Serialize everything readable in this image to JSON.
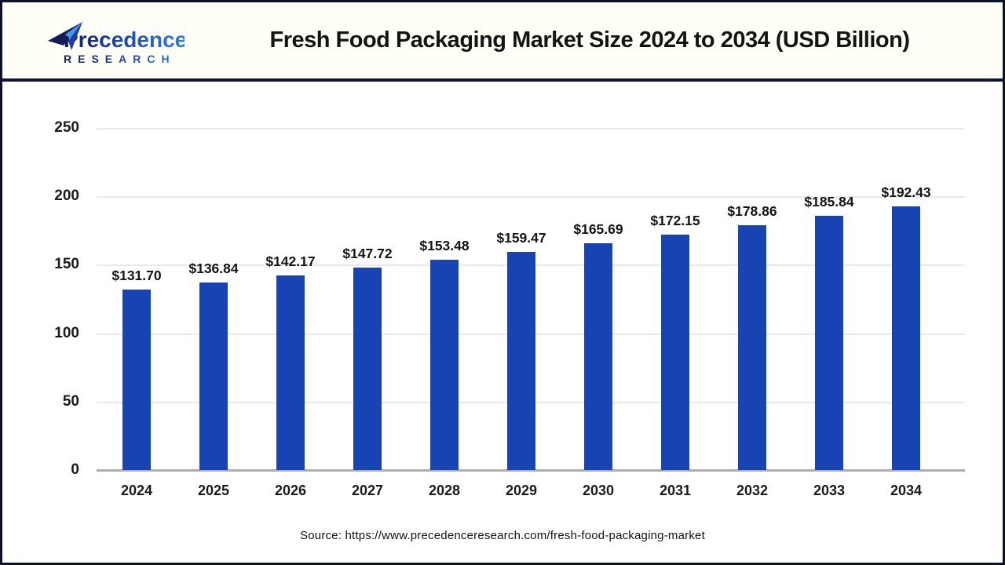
{
  "header": {
    "logo": {
      "line1": "Precedence",
      "line2": "RESEARCH",
      "icon": "paper-plane-icon",
      "colors": {
        "navy": "#161f5e",
        "blue": "#2f7de2",
        "light_blue": "#4796ec"
      }
    },
    "title": "Fresh Food Packaging Market Size 2024 to 2034 (USD Billion)"
  },
  "chart_data": {
    "type": "bar",
    "title": "Fresh Food Packaging Market Size 2024 to 2034 (USD Billion)",
    "categories": [
      "2024",
      "2025",
      "2026",
      "2027",
      "2028",
      "2029",
      "2030",
      "2031",
      "2032",
      "2033",
      "2034"
    ],
    "values": [
      131.7,
      136.84,
      142.17,
      147.72,
      153.48,
      159.47,
      165.69,
      172.15,
      178.86,
      185.84,
      192.43
    ],
    "labels": [
      "$131.70",
      "$136.84",
      "$142.17",
      "$147.72",
      "$153.48",
      "$159.47",
      "$165.69",
      "$172.15",
      "$178.86",
      "$185.84",
      "$192.43"
    ],
    "xlabel": "",
    "ylabel": "",
    "ylim": [
      0,
      250
    ],
    "yticks": [
      0,
      50,
      100,
      150,
      200,
      250
    ],
    "grid": true,
    "legend_position": "none",
    "bar_color": "#1743b3",
    "gridline_color": "#e9e9e9",
    "baseline_color": "#adadad",
    "unit": "USD Billion"
  },
  "footer": {
    "source": "Source: https://www.precedenceresearch.com/fresh-food-packaging-market"
  },
  "colors": {
    "header_bg": "#fffef7",
    "separator": "#11123b",
    "page_border": "#0d0f2b",
    "text": "#141414"
  }
}
